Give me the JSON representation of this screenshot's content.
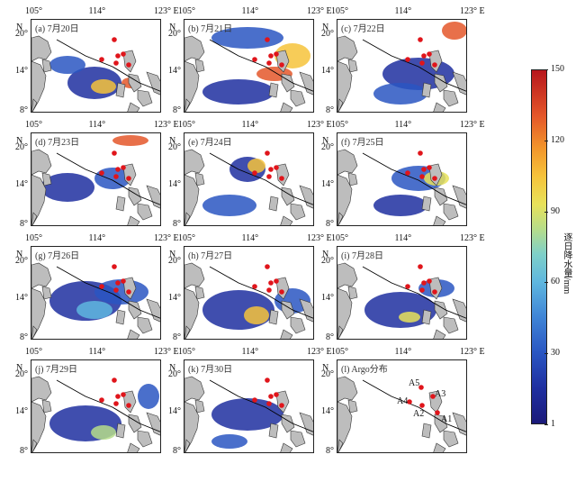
{
  "panels": [
    {
      "label": "(a) 7月20日"
    },
    {
      "label": "(b) 7月21日"
    },
    {
      "label": "(c) 7月22日"
    },
    {
      "label": "(d) 7月23日"
    },
    {
      "label": "(e) 7月24日"
    },
    {
      "label": "(f) 7月25日"
    },
    {
      "label": "(g) 7月26日"
    },
    {
      "label": "(h) 7月27日"
    },
    {
      "label": "(i) 7月28日"
    },
    {
      "label": "(j) 7月29日"
    },
    {
      "label": "(k) 7月30日"
    },
    {
      "label": "(l) Argo分布"
    }
  ],
  "axes": {
    "lon_ticks": [
      "105°",
      "114°",
      "123° E"
    ],
    "lat_ticks": [
      "20°",
      "14°",
      "8°"
    ],
    "north_label": "N"
  },
  "colorbar": {
    "title": "逐日降水量/mm",
    "ticks": [
      "150",
      "120",
      "90",
      "60",
      "30",
      "1"
    ],
    "colors": [
      "#1b1a7a",
      "#2a56c2",
      "#5fb7df",
      "#b6dd8a",
      "#f6c33b",
      "#e4572a",
      "#b7161c"
    ]
  },
  "argo_floats": [
    "A5",
    "A3",
    "A4",
    "A2",
    "A1"
  ],
  "colors": {
    "land": "#bdbdbd",
    "ocean": "#ffffff",
    "float": "#e0151b",
    "track": "#000000"
  }
}
